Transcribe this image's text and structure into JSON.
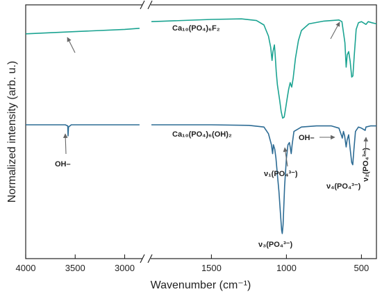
{
  "chart_data": {
    "type": "line",
    "xlabel": "Wavenumber (cm⁻¹)",
    "ylabel": "Normalized intensity (arb. u.)",
    "x_ticks": [
      "4000",
      "3500",
      "3000",
      "1500",
      "1000",
      "500"
    ],
    "axis_break_between": [
      2800,
      1900
    ],
    "x_direction": "descending",
    "series": [
      {
        "name": "Ca₁₀(PO₄)₆F₂",
        "color": "#1aa391",
        "points": [
          [
            4000,
            0.82
          ],
          [
            3500,
            0.84
          ],
          [
            3000,
            0.86
          ],
          [
            2850,
            0.87
          ],
          [
            1900,
            0.93
          ],
          [
            1500,
            0.95
          ],
          [
            1300,
            0.955
          ],
          [
            1200,
            0.94
          ],
          [
            1150,
            0.9
          ],
          [
            1120,
            0.8
          ],
          [
            1105,
            0.7
          ],
          [
            1096,
            0.58
          ],
          [
            1090,
            0.66
          ],
          [
            1080,
            0.72
          ],
          [
            1075,
            0.63
          ],
          [
            1068,
            0.48
          ],
          [
            1060,
            0.36
          ],
          [
            1045,
            0.22
          ],
          [
            1035,
            0.12
          ],
          [
            1025,
            0.06
          ],
          [
            1015,
            0.07
          ],
          [
            1005,
            0.15
          ],
          [
            995,
            0.24
          ],
          [
            985,
            0.32
          ],
          [
            975,
            0.38
          ],
          [
            965,
            0.34
          ],
          [
            955,
            0.42
          ],
          [
            940,
            0.6
          ],
          [
            920,
            0.76
          ],
          [
            900,
            0.85
          ],
          [
            850,
            0.91
          ],
          [
            750,
            0.935
          ],
          [
            650,
            0.945
          ],
          [
            630,
            0.93
          ],
          [
            610,
            0.74
          ],
          [
            602,
            0.52
          ],
          [
            595,
            0.63
          ],
          [
            585,
            0.66
          ],
          [
            575,
            0.57
          ],
          [
            565,
            0.43
          ],
          [
            557,
            0.44
          ],
          [
            548,
            0.62
          ],
          [
            535,
            0.86
          ],
          [
            520,
            0.92
          ],
          [
            500,
            0.93
          ],
          [
            470,
            0.905
          ],
          [
            455,
            0.93
          ],
          [
            430,
            0.92
          ],
          [
            400,
            0.91
          ]
        ]
      },
      {
        "name": "Ca₁₀(PO₄)₆(OH)₂",
        "color": "#2c6b94",
        "points": [
          [
            4000,
            0.0
          ],
          [
            3600,
            0.0
          ],
          [
            3575,
            -0.01
          ],
          [
            3572,
            -0.1
          ],
          [
            3568,
            -0.02
          ],
          [
            3540,
            0.0
          ],
          [
            3000,
            0.0
          ],
          [
            2850,
            0.0
          ],
          [
            1900,
            0.0
          ],
          [
            1500,
            0.0
          ],
          [
            1250,
            -0.005
          ],
          [
            1150,
            -0.02
          ],
          [
            1120,
            -0.08
          ],
          [
            1100,
            -0.18
          ],
          [
            1092,
            -0.26
          ],
          [
            1087,
            -0.18
          ],
          [
            1078,
            -0.22
          ],
          [
            1070,
            -0.3
          ],
          [
            1060,
            -0.45
          ],
          [
            1050,
            -0.6
          ],
          [
            1040,
            -0.8
          ],
          [
            1032,
            -0.95
          ],
          [
            1028,
            -0.98
          ],
          [
            1022,
            -0.9
          ],
          [
            1012,
            -0.55
          ],
          [
            1000,
            -0.3
          ],
          [
            990,
            -0.18
          ],
          [
            980,
            -0.16
          ],
          [
            975,
            -0.2
          ],
          [
            968,
            -0.26
          ],
          [
            962,
            -0.18
          ],
          [
            950,
            -0.06
          ],
          [
            900,
            -0.02
          ],
          [
            800,
            -0.01
          ],
          [
            700,
            -0.01
          ],
          [
            650,
            -0.03
          ],
          [
            632,
            -0.1
          ],
          [
            628,
            -0.12
          ],
          [
            620,
            -0.06
          ],
          [
            612,
            -0.1
          ],
          [
            602,
            -0.2
          ],
          [
            596,
            -0.14
          ],
          [
            585,
            -0.09
          ],
          [
            575,
            -0.22
          ],
          [
            565,
            -0.34
          ],
          [
            558,
            -0.36
          ],
          [
            550,
            -0.22
          ],
          [
            540,
            -0.06
          ],
          [
            520,
            -0.02
          ],
          [
            500,
            -0.03
          ],
          [
            475,
            -0.05
          ],
          [
            470,
            -0.02
          ],
          [
            440,
            -0.01
          ],
          [
            400,
            -0.01
          ]
        ]
      }
    ],
    "annotations": [
      {
        "text": "Ca₁₀(PO₄)₆F₂"
      },
      {
        "text": "Ca₁₀(PO₄)₆(OH)₂"
      },
      {
        "text": "OH–"
      },
      {
        "text": "OH–"
      },
      {
        "text": "ν₁(PO₄³⁻)"
      },
      {
        "text": "ν₃(PO₄³⁻)"
      },
      {
        "text": "ν₄(PO₄³⁻)"
      },
      {
        "text": "ν₂(PO₄³⁻)"
      }
    ],
    "legend": "none",
    "grid": false
  }
}
